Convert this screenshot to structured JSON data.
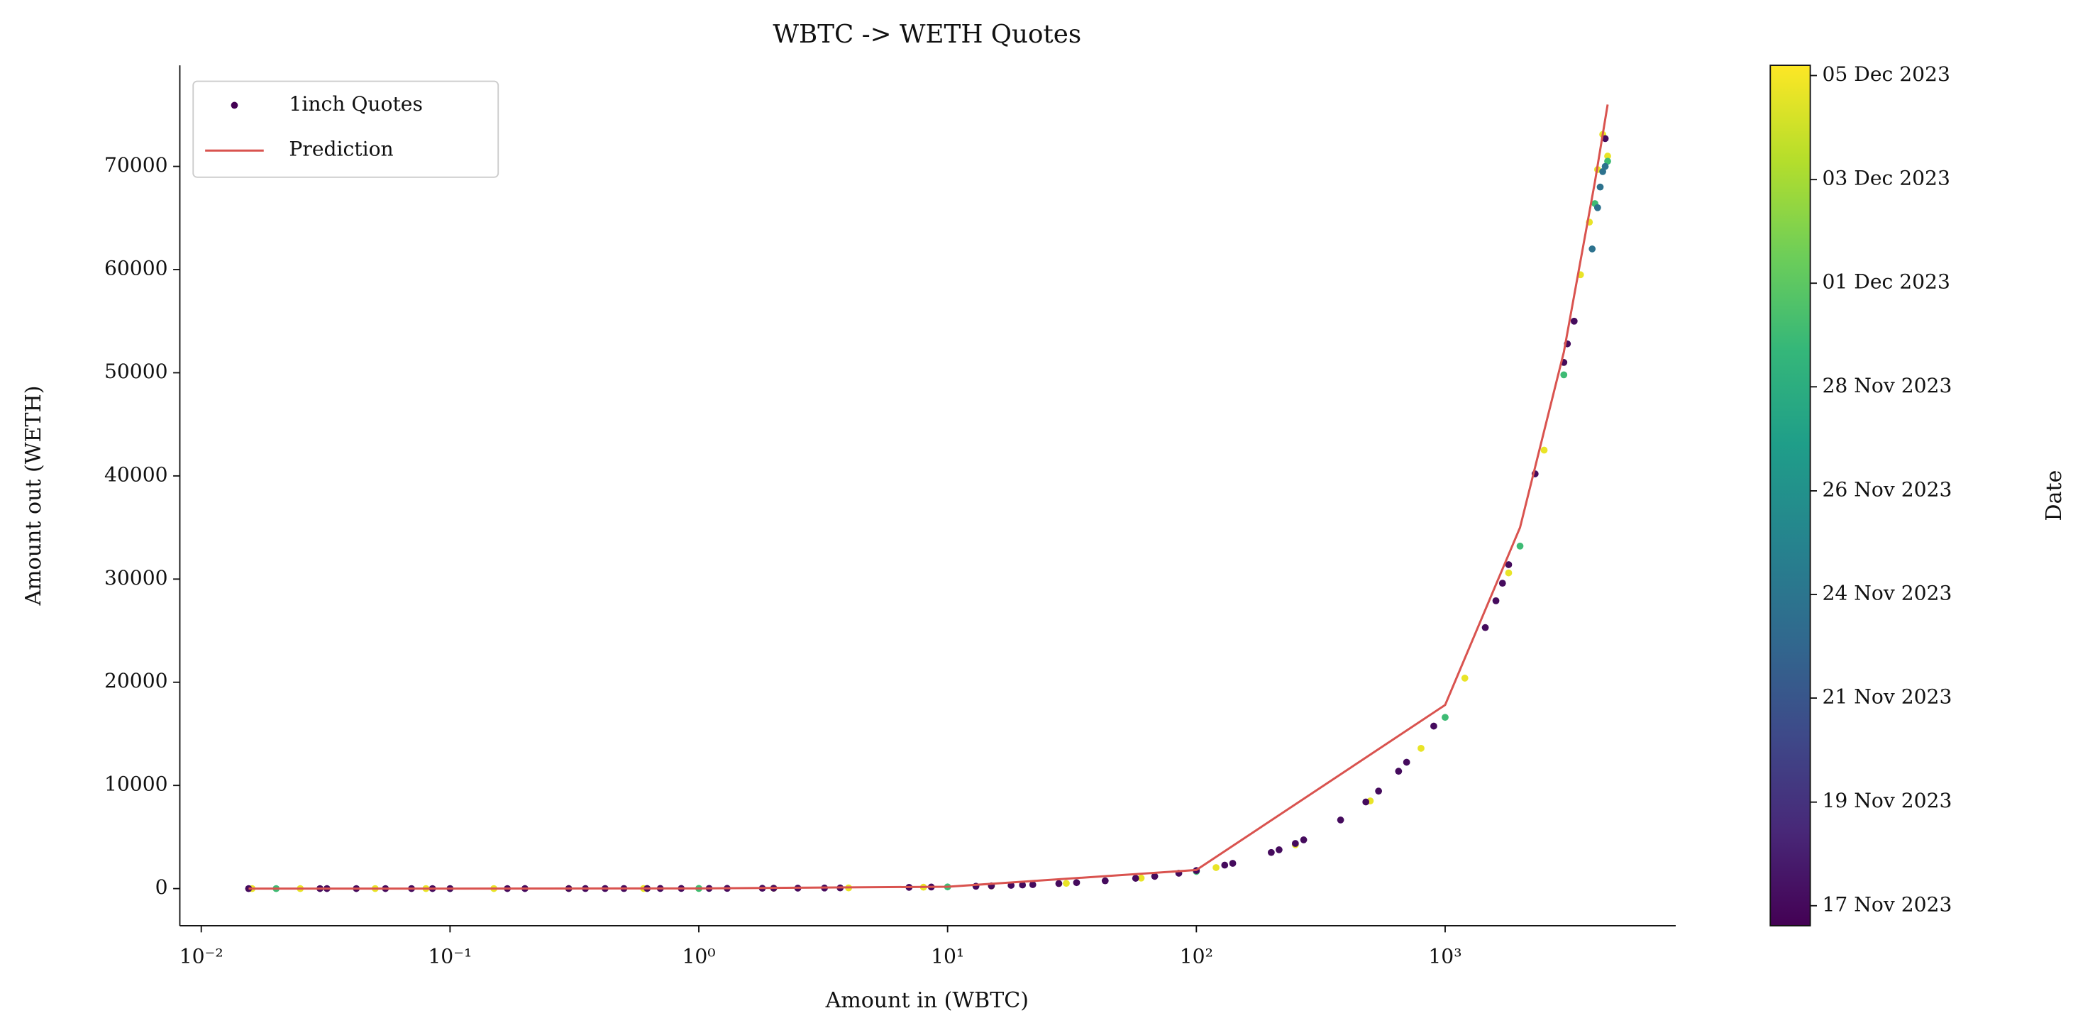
{
  "chart_data": {
    "type": "scatter",
    "title": "WBTC -> WETH Quotes",
    "x_label": "Amount in (WBTC)",
    "y_label": "Amount out (WETH)",
    "colorbar_label": "Date",
    "xscale": "log",
    "xlim": [
      0.0082,
      8450
    ],
    "ylim": [
      -3600,
      79800
    ],
    "xticks": [
      {
        "value": 0.01,
        "label": "10⁻²"
      },
      {
        "value": 0.1,
        "label": "10⁻¹"
      },
      {
        "value": 1,
        "label": "10⁰"
      },
      {
        "value": 10,
        "label": "10¹"
      },
      {
        "value": 100,
        "label": "10²"
      },
      {
        "value": 1000,
        "label": "10³"
      }
    ],
    "yticks": [
      0,
      10000,
      20000,
      30000,
      40000,
      50000,
      60000,
      70000
    ],
    "clim": [
      -0.25,
      19.1
    ],
    "cticks": [
      {
        "value": 0.2,
        "label": "17 Nov 2023"
      },
      {
        "value": 2.53,
        "label": "19 Nov 2023"
      },
      {
        "value": 4.87,
        "label": "21 Nov 2023"
      },
      {
        "value": 7.2,
        "label": "24 Nov 2023"
      },
      {
        "value": 9.53,
        "label": "26 Nov 2023"
      },
      {
        "value": 11.87,
        "label": "28 Nov 2023"
      },
      {
        "value": 14.2,
        "label": "01 Dec 2023"
      },
      {
        "value": 16.53,
        "label": "03 Dec 2023"
      },
      {
        "value": 18.87,
        "label": "05 Dec 2023"
      }
    ],
    "legend": "upper left",
    "series": [
      {
        "name": "1inch Quotes",
        "type": "scatter",
        "color": "#440154",
        "x": [
          0.016,
          0.025,
          0.05,
          0.08,
          0.15,
          0.3,
          0.6,
          1,
          2,
          4,
          8,
          15,
          30,
          60,
          120,
          250,
          500,
          800,
          1200,
          1800,
          2500,
          3000,
          3500,
          3800,
          4100,
          4300,
          4500,
          0.02,
          0.1,
          1,
          10,
          100,
          1000,
          2000,
          3000,
          4000,
          4500,
          3900,
          4100,
          4200,
          4300,
          4400,
          0.0155,
          0.03,
          0.032,
          0.042,
          0.055,
          0.07,
          0.085,
          0.1,
          0.17,
          0.2,
          0.3,
          0.35,
          0.42,
          0.5,
          0.62,
          0.7,
          0.85,
          1.1,
          1.3,
          1.8,
          2.0,
          2.5,
          3.2,
          3.7,
          7,
          8.6,
          13,
          15,
          18,
          20,
          22,
          28,
          33,
          43,
          57,
          68,
          85,
          100,
          130,
          140,
          200,
          215,
          250,
          270,
          380,
          480,
          540,
          650,
          700,
          900,
          1450,
          1600,
          1700,
          1800,
          2300,
          3000,
          3100,
          3300,
          4400
        ],
        "values": [
          0.27,
          0.43,
          0.85,
          1.36,
          2.6,
          5.1,
          10.2,
          17,
          34,
          68,
          136,
          255,
          510,
          1020,
          2040,
          4250,
          8500,
          13600,
          20400,
          30600,
          42500,
          51000,
          59500,
          64600,
          69700,
          73100,
          71000,
          0.33,
          1.66,
          16.6,
          166,
          1660,
          16600,
          33200,
          49800,
          66400,
          70500,
          62000,
          66000,
          68000,
          69500,
          70000,
          0.27,
          0.53,
          0.56,
          0.74,
          0.96,
          1.2,
          1.5,
          1.75,
          3,
          3.5,
          5.3,
          6.1,
          7.4,
          8.8,
          10.9,
          12.3,
          14.9,
          19.3,
          22.8,
          31.5,
          35,
          43.8,
          56,
          65,
          123,
          151,
          228,
          263,
          315,
          350,
          385,
          490,
          578,
          753,
          998,
          1190,
          1488,
          1750,
          2275,
          2450,
          3500,
          3763,
          4375,
          4725,
          6650,
          8400,
          9450,
          11375,
          12250,
          15750,
          25300,
          27900,
          29600,
          31400,
          40200,
          51000,
          52800,
          55000,
          72700
        ],
        "c": [
          18.5,
          18.5,
          18.5,
          18.5,
          18.5,
          18.5,
          18.5,
          18.5,
          18.5,
          18.5,
          18.5,
          18.5,
          18.5,
          18.5,
          18.5,
          18.5,
          18.5,
          18.5,
          18.5,
          18.5,
          18.5,
          18.5,
          18.5,
          18.5,
          18.5,
          18.5,
          18.5,
          13,
          13,
          13,
          13,
          13,
          13,
          13,
          13,
          13,
          13,
          7,
          7,
          7,
          7,
          7,
          0.3,
          0.3,
          0.3,
          0.3,
          0.3,
          0.3,
          0.3,
          0.3,
          0.3,
          0.3,
          0.3,
          0.3,
          0.3,
          0.3,
          0.3,
          0.3,
          0.3,
          0.3,
          0.3,
          0.3,
          0.3,
          0.3,
          0.3,
          0.3,
          0.3,
          0.3,
          0.3,
          0.3,
          0.3,
          0.3,
          0.3,
          0.3,
          0.3,
          0.3,
          0.3,
          0.3,
          0.3,
          0.3,
          0.3,
          0.3,
          0.3,
          0.3,
          0.3,
          0.3,
          0.3,
          0.3,
          0.3,
          0.3,
          0.3,
          0.3,
          0.3,
          0.3,
          0.3,
          0.3,
          0.3,
          0.3,
          0.3,
          0.3,
          0.3
        ]
      },
      {
        "name": "Prediction",
        "type": "line",
        "color": "#d9534f",
        "x": [
          0.0155,
          0.1,
          1,
          10,
          100,
          1000,
          2000,
          3000,
          4000,
          4500
        ],
        "values": [
          0.28,
          1.8,
          18,
          180,
          1800,
          17800,
          35000,
          52000,
          68500,
          76000
        ]
      }
    ]
  }
}
